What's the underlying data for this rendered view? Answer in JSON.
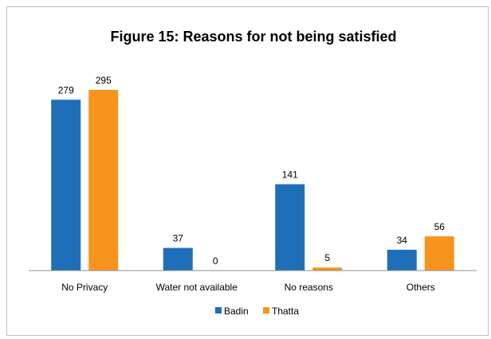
{
  "chart_data": {
    "type": "bar",
    "title": "Figure 15: Reasons for not being satisfied",
    "categories": [
      "No Privacy",
      "Water not available",
      "No reasons",
      "Others"
    ],
    "series": [
      {
        "name": "Badin",
        "values": [
          279,
          37,
          141,
          34
        ],
        "color": "#1f6fb8"
      },
      {
        "name": "Thatta",
        "values": [
          295,
          0,
          5,
          56
        ],
        "color": "#f7941d"
      }
    ],
    "xlabel": "",
    "ylabel": "",
    "ylim": [
      0,
      295
    ],
    "grid": false,
    "legend": "bottom-center"
  }
}
